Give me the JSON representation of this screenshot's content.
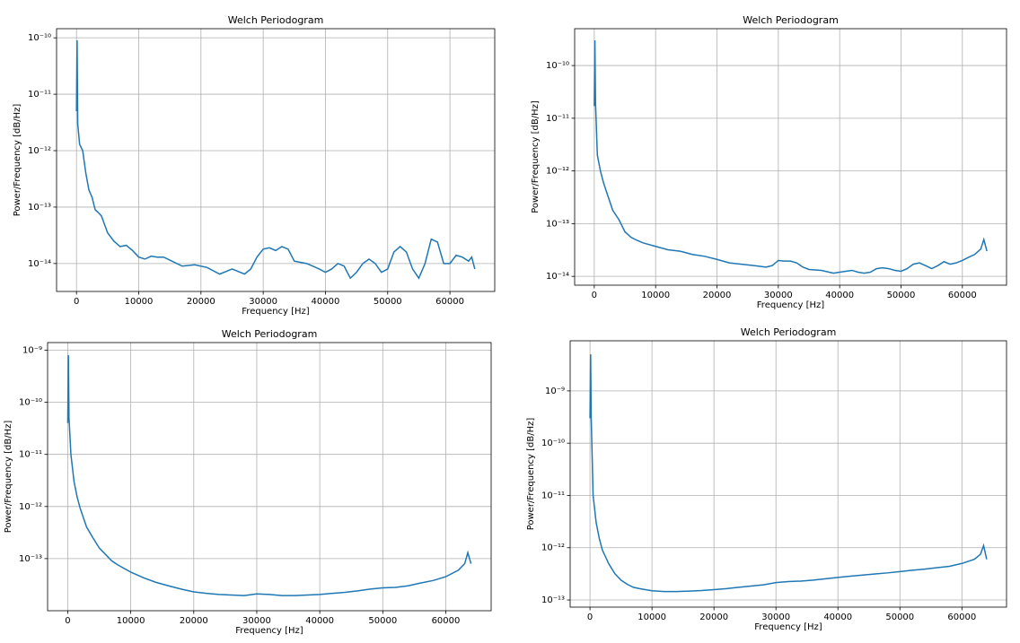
{
  "chart_data": [
    {
      "type": "line",
      "title": "Welch Periodogram",
      "xlabel": "Frequency [Hz]",
      "ylabel": "Power/Frequency [dB/Hz]",
      "log_scale_y": true,
      "grid": true,
      "color": "#1f77b4",
      "xlim": [
        -3200,
        67200
      ],
      "xticks": [
        0,
        10000,
        20000,
        30000,
        40000,
        50000,
        60000
      ],
      "ylim": [
        3.2e-15,
        1.45e-10
      ],
      "yticks": [
        {
          "value": 1e-10,
          "label": "10⁻¹⁰"
        },
        {
          "value": 1e-11,
          "label": "10⁻¹¹"
        },
        {
          "value": 1e-12,
          "label": "10⁻¹²"
        },
        {
          "value": 1e-13,
          "label": "10⁻¹³"
        },
        {
          "value": 1e-14,
          "label": "10⁻¹⁴"
        }
      ],
      "x": [
        0,
        100,
        200,
        500,
        1000,
        1500,
        2000,
        2500,
        3000,
        3500,
        4000,
        5000,
        6000,
        7000,
        8000,
        9000,
        10000,
        11000,
        12000,
        13000,
        14000,
        15000,
        17000,
        19000,
        21000,
        23000,
        25000,
        27000,
        28000,
        29000,
        30000,
        31000,
        32000,
        33000,
        34000,
        35000,
        37000,
        39000,
        40000,
        41000,
        42000,
        43000,
        44000,
        45000,
        46000,
        47000,
        48000,
        49000,
        50000,
        51000,
        52000,
        53000,
        54000,
        55000,
        56000,
        57000,
        58000,
        59000,
        60000,
        61000,
        62000,
        63000,
        63500,
        64000
      ],
      "values": [
        5e-12,
        9e-11,
        3e-12,
        1.3e-12,
        1e-12,
        4e-13,
        2e-13,
        1.5e-13,
        9e-14,
        8e-14,
        7e-14,
        3.5e-14,
        2.5e-14,
        2e-14,
        2.1e-14,
        1.7e-14,
        1.3e-14,
        1.2e-14,
        1.35e-14,
        1.3e-14,
        1.3e-14,
        1.15e-14,
        9e-15,
        9.5e-15,
        8.5e-15,
        6.5e-15,
        8e-15,
        6.5e-15,
        8e-15,
        1.3e-14,
        1.8e-14,
        1.9e-14,
        1.7e-14,
        2e-14,
        1.8e-14,
        1.1e-14,
        1e-14,
        8e-15,
        7e-15,
        8e-15,
        1e-14,
        9e-15,
        5.5e-15,
        7e-15,
        1e-14,
        1.2e-14,
        1e-14,
        7e-15,
        8e-15,
        1.6e-14,
        2e-14,
        1.6e-14,
        8e-15,
        5.5e-15,
        1e-14,
        2.7e-14,
        2.4e-14,
        1e-14,
        1e-14,
        1.4e-14,
        1.3e-14,
        1.1e-14,
        1.3e-14,
        8e-15
      ]
    },
    {
      "type": "line",
      "title": "Welch Periodogram",
      "xlabel": "Frequency [Hz]",
      "ylabel": "Power/Frequency [dB/Hz]",
      "log_scale_y": true,
      "grid": true,
      "color": "#1f77b4",
      "xlim": [
        -3200,
        67200
      ],
      "xticks": [
        0,
        10000,
        20000,
        30000,
        40000,
        50000,
        60000
      ],
      "ylim": [
        6.8e-15,
        5e-10
      ],
      "yticks": [
        {
          "value": 1e-10,
          "label": "10⁻¹⁰"
        },
        {
          "value": 1e-11,
          "label": "10⁻¹¹"
        },
        {
          "value": 1e-12,
          "label": "10⁻¹²"
        },
        {
          "value": 1e-13,
          "label": "10⁻¹³"
        },
        {
          "value": 1e-14,
          "label": "10⁻¹⁴"
        }
      ],
      "x": [
        0,
        100,
        200,
        500,
        1000,
        1500,
        2000,
        3000,
        4000,
        5000,
        6000,
        7000,
        8000,
        10000,
        12000,
        14000,
        16000,
        18000,
        20000,
        22000,
        24000,
        26000,
        28000,
        29000,
        30000,
        31000,
        32000,
        33000,
        34000,
        35000,
        37000,
        39000,
        40000,
        41000,
        42000,
        43000,
        44000,
        45000,
        46000,
        47000,
        48000,
        49000,
        50000,
        51000,
        52000,
        53000,
        54000,
        55000,
        56000,
        57000,
        58000,
        59000,
        60000,
        61000,
        62000,
        63000,
        63500,
        64000
      ],
      "values": [
        1.7e-11,
        3e-10,
        2e-11,
        2e-12,
        1e-12,
        6e-13,
        4e-13,
        1.8e-13,
        1.2e-13,
        7e-14,
        5.5e-14,
        4.8e-14,
        4.3e-14,
        3.7e-14,
        3.2e-14,
        3e-14,
        2.6e-14,
        2.4e-14,
        2.1e-14,
        1.8e-14,
        1.7e-14,
        1.6e-14,
        1.5e-14,
        1.6e-14,
        2e-14,
        1.95e-14,
        1.95e-14,
        1.8e-14,
        1.5e-14,
        1.35e-14,
        1.3e-14,
        1.15e-14,
        1.2e-14,
        1.25e-14,
        1.3e-14,
        1.2e-14,
        1.15e-14,
        1.2e-14,
        1.4e-14,
        1.45e-14,
        1.4e-14,
        1.3e-14,
        1.25e-14,
        1.4e-14,
        1.7e-14,
        1.8e-14,
        1.6e-14,
        1.4e-14,
        1.6e-14,
        1.9e-14,
        1.7e-14,
        1.8e-14,
        2e-14,
        2.3e-14,
        2.6e-14,
        3.3e-14,
        5e-14,
        3e-14
      ]
    },
    {
      "type": "line",
      "title": "Welch Periodogram",
      "xlabel": "Frequency [Hz]",
      "ylabel": "Power/Frequency [dB/Hz]",
      "log_scale_y": true,
      "grid": true,
      "color": "#1f77b4",
      "xlim": [
        -3200,
        67200
      ],
      "xticks": [
        0,
        10000,
        20000,
        30000,
        40000,
        50000,
        60000
      ],
      "ylim": [
        1e-14,
        1.4e-09
      ],
      "yticks": [
        {
          "value": 1e-09,
          "label": "10⁻⁹"
        },
        {
          "value": 1e-10,
          "label": "10⁻¹⁰"
        },
        {
          "value": 1e-11,
          "label": "10⁻¹¹"
        },
        {
          "value": 1e-12,
          "label": "10⁻¹²"
        },
        {
          "value": 1e-13,
          "label": "10⁻¹³"
        }
      ],
      "x": [
        0,
        100,
        200,
        500,
        1000,
        1500,
        2000,
        3000,
        4000,
        5000,
        6000,
        7000,
        8000,
        10000,
        12000,
        14000,
        16000,
        18000,
        20000,
        22000,
        24000,
        26000,
        28000,
        30000,
        32000,
        34000,
        36000,
        38000,
        40000,
        42000,
        44000,
        46000,
        48000,
        50000,
        52000,
        54000,
        56000,
        58000,
        60000,
        62000,
        63000,
        63500,
        64000
      ],
      "values": [
        4e-11,
        8e-10,
        5e-11,
        1e-11,
        3e-12,
        1.5e-12,
        9e-13,
        4e-13,
        2.5e-13,
        1.6e-13,
        1.2e-13,
        9e-14,
        7.5e-14,
        5.5e-14,
        4.3e-14,
        3.5e-14,
        3e-14,
        2.6e-14,
        2.3e-14,
        2.15e-14,
        2.05e-14,
        2e-14,
        1.95e-14,
        2.1e-14,
        2.05e-14,
        1.95e-14,
        1.95e-14,
        2e-14,
        2.05e-14,
        2.15e-14,
        2.25e-14,
        2.4e-14,
        2.6e-14,
        2.75e-14,
        2.8e-14,
        3e-14,
        3.4e-14,
        3.8e-14,
        4.5e-14,
        6e-14,
        8e-14,
        1.3e-13,
        8e-14
      ]
    },
    {
      "type": "line",
      "title": "Welch Periodogram",
      "xlabel": "Frequency [Hz]",
      "ylabel": "Power/Frequency [dB/Hz]",
      "log_scale_y": true,
      "grid": true,
      "color": "#1f77b4",
      "xlim": [
        -3200,
        67200
      ],
      "xticks": [
        0,
        10000,
        20000,
        30000,
        40000,
        50000,
        60000
      ],
      "ylim": [
        7.3e-14,
        9.1e-09
      ],
      "yticks": [
        {
          "value": 1e-09,
          "label": "10⁻⁹"
        },
        {
          "value": 1e-10,
          "label": "10⁻¹⁰"
        },
        {
          "value": 1e-11,
          "label": "10⁻¹¹"
        },
        {
          "value": 1e-12,
          "label": "10⁻¹²"
        },
        {
          "value": 1e-13,
          "label": "10⁻¹³"
        }
      ],
      "x": [
        0,
        100,
        200,
        500,
        1000,
        1500,
        2000,
        3000,
        4000,
        5000,
        6000,
        7000,
        8000,
        10000,
        12000,
        14000,
        16000,
        18000,
        20000,
        22000,
        24000,
        26000,
        28000,
        30000,
        32000,
        34000,
        36000,
        38000,
        40000,
        42000,
        44000,
        46000,
        48000,
        50000,
        52000,
        54000,
        56000,
        58000,
        60000,
        62000,
        63000,
        63500,
        64000
      ],
      "values": [
        3e-10,
        5e-09,
        3e-10,
        1e-11,
        3e-12,
        1.5e-12,
        9e-13,
        5e-13,
        3.2e-13,
        2.4e-13,
        2e-13,
        1.75e-13,
        1.65e-13,
        1.5e-13,
        1.45e-13,
        1.45e-13,
        1.48e-13,
        1.52e-13,
        1.58e-13,
        1.65e-13,
        1.75e-13,
        1.85e-13,
        1.95e-13,
        2.15e-13,
        2.25e-13,
        2.3e-13,
        2.4e-13,
        2.55e-13,
        2.7e-13,
        2.85e-13,
        3e-13,
        3.15e-13,
        3.3e-13,
        3.5e-13,
        3.7e-13,
        3.9e-13,
        4.15e-13,
        4.4e-13,
        5e-13,
        6e-13,
        7.5e-13,
        1.1e-12,
        6e-13
      ]
    }
  ]
}
